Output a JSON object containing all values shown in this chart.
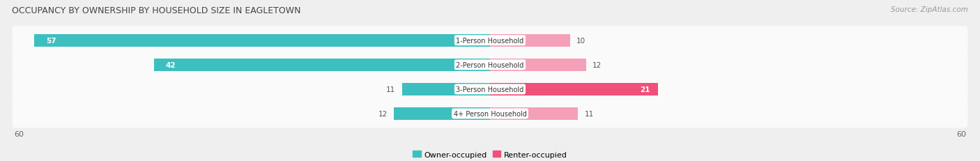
{
  "title": "OCCUPANCY BY OWNERSHIP BY HOUSEHOLD SIZE IN EAGLETOWN",
  "source": "Source: ZipAtlas.com",
  "categories": [
    "1-Person Household",
    "2-Person Household",
    "3-Person Household",
    "4+ Person Household"
  ],
  "owner_values": [
    57,
    42,
    11,
    12
  ],
  "renter_values": [
    10,
    12,
    21,
    11
  ],
  "owner_color": "#3DBFBF",
  "renter_colors": [
    "#F4A0B8",
    "#F4A0B8",
    "#F0507A",
    "#F4A0B8"
  ],
  "axis_max": 60,
  "bg_color": "#efefef",
  "row_bg_color": "#fafafa",
  "title_fontsize": 9,
  "source_fontsize": 7.5,
  "bar_height": 0.52,
  "value_fontsize": 7.5,
  "label_fontsize": 7,
  "legend_owner": "Owner-occupied",
  "legend_renter": "Renter-occupied"
}
